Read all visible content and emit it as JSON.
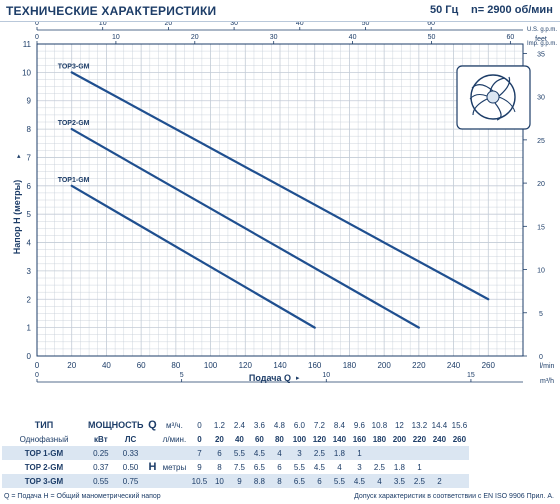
{
  "header": {
    "title": "ТЕХНИЧЕСКИЕ ХАРАКТЕРИСТИКИ",
    "frequency": "50 Гц",
    "speed": "n= 2900 об/мин"
  },
  "colors": {
    "curve": "#1f4f8f",
    "grid": "#c3cbd6",
    "axis": "#1d3d68",
    "row_band": "#dbe6f2"
  },
  "chart_data": {
    "type": "line",
    "xlabel": "Подача Q",
    "ylabel": "Напор H (метры)",
    "x_unit": "l/min",
    "xlim": [
      0,
      280
    ],
    "ylim": [
      0,
      11
    ],
    "y2_unit": "feet",
    "y2lim": [
      0,
      36
    ],
    "x_ticks": [
      0,
      20,
      40,
      60,
      80,
      100,
      120,
      140,
      160,
      180,
      200,
      220,
      240,
      260
    ],
    "y_ticks": [
      0,
      1,
      2,
      3,
      4,
      5,
      6,
      7,
      8,
      9,
      10,
      11
    ],
    "y2_ticks": [
      0,
      5,
      10,
      15,
      20,
      25,
      30,
      35
    ],
    "top_axes": [
      {
        "unit": "U.S. g.p.m.",
        "factor": 0.2642,
        "ticks": [
          0,
          10,
          20,
          30,
          40,
          50,
          60
        ]
      },
      {
        "unit": "Imp. g.p.m.",
        "factor": 0.22,
        "ticks": [
          0,
          10,
          20,
          30,
          40,
          50,
          60
        ]
      }
    ],
    "bottom_axis": {
      "unit": "m³/h",
      "factor": 0.06,
      "ticks": [
        0,
        5,
        10,
        15
      ]
    },
    "grid": true,
    "series": [
      {
        "name": "TOP3-GM",
        "x": [
          20,
          260
        ],
        "y": [
          10,
          2
        ]
      },
      {
        "name": "TOP2-GM",
        "x": [
          20,
          220
        ],
        "y": [
          8,
          1
        ]
      },
      {
        "name": "TOP1-GM",
        "x": [
          20,
          160
        ],
        "y": [
          6,
          1
        ]
      }
    ]
  },
  "table": {
    "head1": {
      "type": "ТИП",
      "power": "МОЩНОСТЬ",
      "q": "Q",
      "m3h": "м³/ч.",
      "values": [
        "0",
        "1.2",
        "2.4",
        "3.6",
        "4.8",
        "6.0",
        "7.2",
        "8.4",
        "9.6",
        "10.8",
        "12",
        "13.2",
        "14.4",
        "15.6"
      ]
    },
    "head2": {
      "phase": "Однофазный",
      "kw": "кВт",
      "hp": "ЛС",
      "lmin": "л/мин.",
      "values": [
        "0",
        "20",
        "40",
        "60",
        "80",
        "100",
        "120",
        "140",
        "160",
        "180",
        "200",
        "220",
        "240",
        "260"
      ]
    },
    "h_label": "H",
    "h_unit": "метры",
    "rows": [
      {
        "type": "TOP 1-GM",
        "kw": "0.25",
        "hp": "0.33",
        "values": [
          "7",
          "6",
          "5.5",
          "4.5",
          "4",
          "3",
          "2.5",
          "1.8",
          "1",
          "",
          "",
          "",
          "",
          ""
        ]
      },
      {
        "type": "TOP 2-GM",
        "kw": "0.37",
        "hp": "0.50",
        "values": [
          "9",
          "8",
          "7.5",
          "6.5",
          "6",
          "5.5",
          "4.5",
          "4",
          "3",
          "2.5",
          "1.8",
          "1",
          "",
          ""
        ]
      },
      {
        "type": "TOP 3-GM",
        "kw": "0.55",
        "hp": "0.75",
        "values": [
          "10.5",
          "10",
          "9",
          "8.8",
          "8",
          "6.5",
          "6",
          "5.5",
          "4.5",
          "4",
          "3.5",
          "2.5",
          "2",
          ""
        ]
      }
    ]
  },
  "footer": {
    "legend": "Q = Подача  H = Общий манометрический напор",
    "note": "Допуск характеристик в соответствии с EN ISO 9906 Прил. A."
  }
}
